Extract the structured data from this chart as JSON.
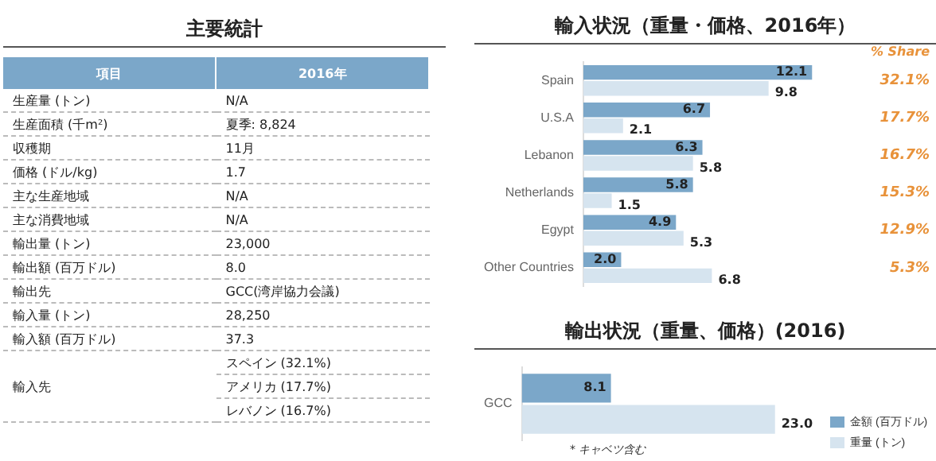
{
  "chart_data": [
    {
      "type": "other",
      "title": "主要統計",
      "annotations": [
        "項目",
        "2016年"
      ],
      "categories": [
        "生産量 (トン)",
        "生産面積 (千m²)",
        "収穫期",
        "価格 (ドル/kg)",
        "主な生産地域",
        "主な消費地域",
        "輸出量 (トン)",
        "輸出額 (百万ドル)",
        "輸出先",
        "輸入量 (トン)",
        "輸入額 (百万ドル)",
        "輸入先",
        null,
        null
      ],
      "value_labels": [
        "N/A",
        "夏季: 8,824",
        "11月",
        "1.7",
        "N/A",
        "N/A",
        "23,000",
        "8.0",
        "GCC(湾岸協力会議)",
        "28,250",
        "37.3",
        "スペイン (32.1%)",
        "アメリカ (17.7%)",
        "レバノン (16.7%)"
      ]
    },
    {
      "type": "bar",
      "orientation": "horizontal",
      "title": "輸入状況（重量・価格、2016年）",
      "categories": [
        "Spain",
        "U.S.A",
        "Lebanon",
        "Netherlands",
        "Egypt",
        "Other Countries"
      ],
      "series": [
        {
          "color": "#7ba7c9",
          "values": [
            12.1,
            6.7,
            6.3,
            5.8,
            4.9,
            2.0
          ],
          "value_labels": [
            "12.1",
            "6.7",
            "6.3",
            "5.8",
            "4.9",
            "2.0"
          ]
        },
        {
          "color": "#d6e4ef",
          "values": [
            9.8,
            2.1,
            5.8,
            1.5,
            5.3,
            6.8
          ],
          "value_labels": [
            "9.8",
            "2.1",
            "5.8",
            "1.5",
            "5.3",
            "6.8"
          ]
        }
      ],
      "annotations": [
        "% Share",
        "32.1%",
        "17.7%",
        "16.7%",
        "15.3%",
        "12.9%",
        "5.3%"
      ],
      "grid": false,
      "legend": false
    },
    {
      "type": "bar",
      "orientation": "horizontal",
      "title": "輸出状況（重量、価格）(2016)",
      "categories": [
        "GCC"
      ],
      "series": [
        {
          "name": "金額 (百万ドル)",
          "color": "#7ba7c9",
          "values": [
            8.1
          ],
          "value_labels": [
            "8.1"
          ]
        },
        {
          "name": "重量 (トン)",
          "color": "#d6e4ef",
          "values": [
            23.0
          ],
          "value_labels": [
            "23.0"
          ]
        }
      ],
      "annotations": [
        "* キャベツ含む"
      ],
      "grid": false,
      "legend": "bottom right"
    }
  ]
}
